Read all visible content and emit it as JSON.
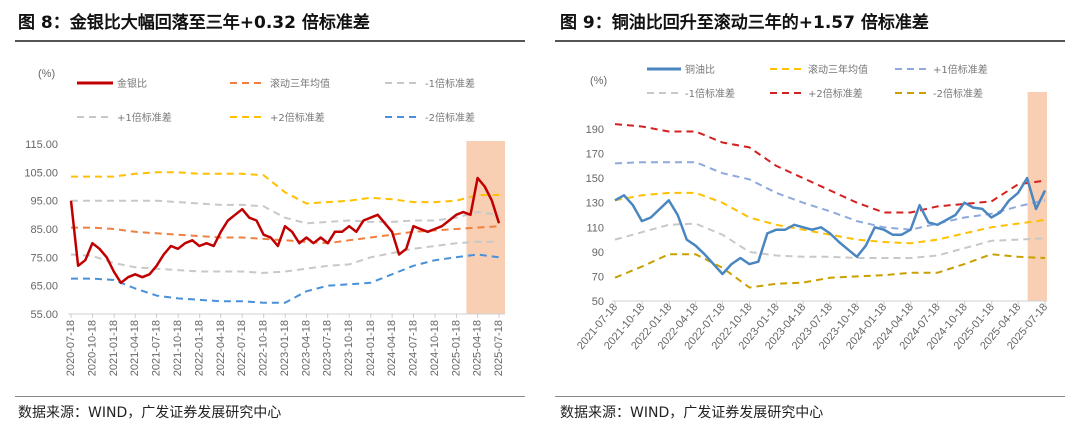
{
  "source": "数据来源：WIND，广发证券发展研究中心",
  "chart_data": [
    {
      "type": "line",
      "title": "图 8：金银比大幅回落至三年+0.32 倍标准差",
      "unit_label": "(%)",
      "ylim": [
        55,
        115
      ],
      "yticks": [
        "55.00",
        "65.00",
        "75.00",
        "85.00",
        "95.00",
        "105.00",
        "115.00"
      ],
      "ytick_values": [
        55,
        65,
        75,
        85,
        95,
        105,
        115
      ],
      "xticks": [
        "2020-07-18",
        "2020-10-18",
        "2021-01-18",
        "2021-04-18",
        "2021-07-18",
        "2021-10-18",
        "2022-01-18",
        "2022-04-18",
        "2022-07-18",
        "2022-10-18",
        "2023-01-18",
        "2023-04-18",
        "2023-07-18",
        "2023-10-18",
        "2024-01-18",
        "2024-04-18",
        "2024-07-18",
        "2024-10-18",
        "2025-01-18",
        "2025-04-18",
        "2025-07-18"
      ],
      "highlight_range": [
        "2025-03-01",
        "2025-07-18"
      ],
      "highlight_color": "#f8cfb3",
      "grid": false,
      "legend_position": "top",
      "series": [
        {
          "name": "金银比",
          "style": "solid",
          "color": "#c00000",
          "frequency": "monthly",
          "values": [
            95,
            72,
            74,
            80,
            78,
            75,
            70,
            66,
            68,
            69,
            68,
            69,
            72,
            76,
            79,
            78,
            80,
            81,
            79,
            80,
            79,
            84,
            88,
            90,
            92,
            89,
            88,
            83,
            82,
            79,
            86,
            84,
            80,
            82,
            80,
            82,
            80,
            84,
            84,
            86,
            84,
            88,
            89,
            90,
            87,
            84,
            76,
            78,
            86,
            85,
            84,
            85,
            86,
            88,
            90,
            91,
            90,
            103,
            100,
            95,
            87
          ]
        },
        {
          "name": "滚动三年均值",
          "style": "dashed",
          "color": "#f08040",
          "frequency": "quarterly",
          "values": [
            85.5,
            85.5,
            85,
            84,
            83.5,
            83,
            82.5,
            82,
            82,
            81.5,
            81,
            80.5,
            80,
            81,
            82,
            83,
            84,
            84.5,
            85,
            85.5,
            86
          ]
        },
        {
          "name": "-1倍标准差",
          "style": "dashed",
          "color": "#c8c8c8",
          "frequency": "quarterly",
          "values": [
            76,
            75.5,
            73,
            71.5,
            71,
            70.5,
            70,
            70,
            70,
            69.5,
            70,
            71,
            72,
            72.5,
            75,
            76.5,
            78,
            79,
            80,
            80.5,
            80.5
          ]
        },
        {
          "name": "+1倍标准差",
          "style": "dashed",
          "color": "#c8c8c8",
          "frequency": "quarterly",
          "values": [
            95,
            95,
            95,
            95,
            95,
            94.5,
            94,
            93.5,
            93.5,
            93,
            89,
            87,
            87.5,
            88,
            87.5,
            87.5,
            88,
            88,
            89,
            91,
            90
          ]
        },
        {
          "name": "+2倍标准差",
          "style": "dashed",
          "color": "#ffc000",
          "frequency": "quarterly",
          "values": [
            103.5,
            103.5,
            103.5,
            104.5,
            105,
            105,
            104.5,
            104.5,
            104.5,
            104,
            98,
            94,
            94.5,
            95,
            96,
            95.5,
            94.5,
            94.5,
            95,
            97,
            97
          ]
        },
        {
          "name": "-2倍标准差",
          "style": "dashed",
          "color": "#4a90d9",
          "frequency": "quarterly",
          "values": [
            67.5,
            67.5,
            67,
            64,
            61.5,
            60.5,
            60,
            59.5,
            59.5,
            59,
            59,
            63,
            65,
            65.5,
            66,
            69,
            72,
            74,
            75,
            76,
            75
          ]
        }
      ]
    },
    {
      "type": "line",
      "title": "图 9：铜油比回升至滚动三年的+1.57 倍标准差",
      "unit_label": "(%)",
      "ylim": [
        50,
        190
      ],
      "yticks": [
        "50",
        "70",
        "90",
        "110",
        "130",
        "150",
        "170",
        "190"
      ],
      "ytick_values": [
        50,
        70,
        90,
        110,
        130,
        150,
        170,
        190
      ],
      "xticks": [
        "2021-07-18",
        "2021-10-18",
        "2022-01-18",
        "2022-04-18",
        "2022-07-18",
        "2022-10-18",
        "2023-01-18",
        "2023-04-18",
        "2023-07-18",
        "2023-10-18",
        "2024-01-18",
        "2024-04-18",
        "2024-07-18",
        "2024-10-18",
        "2025-01-18",
        "2025-04-18",
        "2025-07-18"
      ],
      "highlight_range": [
        "2025-05-20",
        "2025-07-18"
      ],
      "highlight_color": "#f8cfb3",
      "grid": false,
      "legend_position": "top",
      "series": [
        {
          "name": "铜油比",
          "style": "solid",
          "color": "#4a86c0",
          "frequency": "monthly",
          "values": [
            132,
            136,
            128,
            115,
            118,
            125,
            132,
            120,
            100,
            95,
            88,
            80,
            72,
            80,
            85,
            80,
            82,
            105,
            108,
            108,
            112,
            110,
            108,
            110,
            105,
            98,
            92,
            86,
            95,
            110,
            108,
            104,
            104,
            108,
            128,
            114,
            112,
            116,
            120,
            130,
            126,
            125,
            118,
            122,
            132,
            138,
            150,
            125,
            140
          ]
        },
        {
          "name": "滚动三年均值",
          "style": "dashed",
          "color": "#ffc000",
          "frequency": "quarterly",
          "values": [
            132,
            136,
            138,
            138,
            130,
            118,
            112,
            108,
            104,
            100,
            98,
            97,
            100,
            105,
            110,
            113,
            116
          ]
        },
        {
          "name": "+1倍标准差",
          "style": "dashed",
          "color": "#8ea9db",
          "frequency": "quarterly",
          "values": [
            162,
            163,
            163,
            163,
            154,
            149,
            138,
            130,
            123,
            115,
            110,
            108,
            113,
            118,
            121,
            127,
            132
          ]
        },
        {
          "name": "-1倍标准差",
          "style": "dashed",
          "color": "#c8c8c8",
          "frequency": "quarterly",
          "values": [
            100,
            106,
            112,
            113,
            104,
            90,
            87,
            86,
            86,
            85,
            85,
            85,
            87,
            93,
            99,
            100,
            101
          ]
        },
        {
          "name": "+2倍标准差",
          "style": "dashed",
          "color": "#d42020",
          "frequency": "quarterly",
          "values": [
            194,
            192,
            188,
            188,
            179,
            175,
            160,
            150,
            140,
            130,
            122,
            122,
            127,
            129,
            131,
            145,
            148
          ]
        },
        {
          "name": "-2倍标准差",
          "style": "dashed",
          "color": "#c9a000",
          "frequency": "quarterly",
          "values": [
            69,
            78,
            88,
            88,
            77,
            61,
            64,
            65,
            69,
            70,
            71,
            73,
            73,
            80,
            88,
            86,
            85
          ]
        }
      ]
    }
  ]
}
